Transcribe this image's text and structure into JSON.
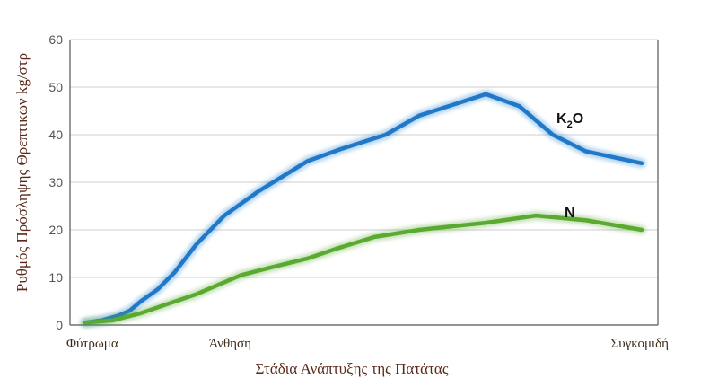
{
  "chart_data": {
    "type": "line",
    "title": "",
    "xlabel": "Στάδια Ανάπτυξης της Πατάτας",
    "ylabel": "Ρυθμός Πρόσληψης Θρεπτικων kg/στρ",
    "ylim": [
      0,
      60
    ],
    "yticks": [
      "0",
      "10",
      "20",
      "30",
      "40",
      "50",
      "60"
    ],
    "xlim": [
      0,
      100
    ],
    "x_stage_labels": [
      {
        "x": 0,
        "label": "Φύτρωμα"
      },
      {
        "x": 26,
        "label": "Άνθηση"
      },
      {
        "x": 100,
        "label": "Συγκομιδή"
      }
    ],
    "grid": "horizontal",
    "series": [
      {
        "name": "K",
        "name_sub": "2",
        "name_suffix": "O",
        "color": "#1f78c8",
        "x": [
          0,
          3,
          6,
          8,
          10,
          13,
          16,
          20,
          25,
          31,
          40,
          46,
          54,
          60,
          72,
          78,
          84,
          90,
          100
        ],
        "values": [
          0.5,
          1,
          2,
          3,
          5,
          7.5,
          11,
          17,
          23,
          28,
          34.5,
          37,
          40,
          44,
          48.5,
          46,
          40,
          36.5,
          34
        ]
      },
      {
        "name": "N",
        "color": "#5aaa32",
        "x": [
          0,
          5,
          10,
          15,
          20,
          24,
          28,
          33,
          40,
          45,
          52,
          60,
          72,
          81,
          90,
          100
        ],
        "values": [
          0.5,
          1,
          2.5,
          4.5,
          6.5,
          8.5,
          10.5,
          12,
          14,
          16,
          18.5,
          20,
          21.5,
          23,
          22,
          20
        ]
      }
    ]
  }
}
